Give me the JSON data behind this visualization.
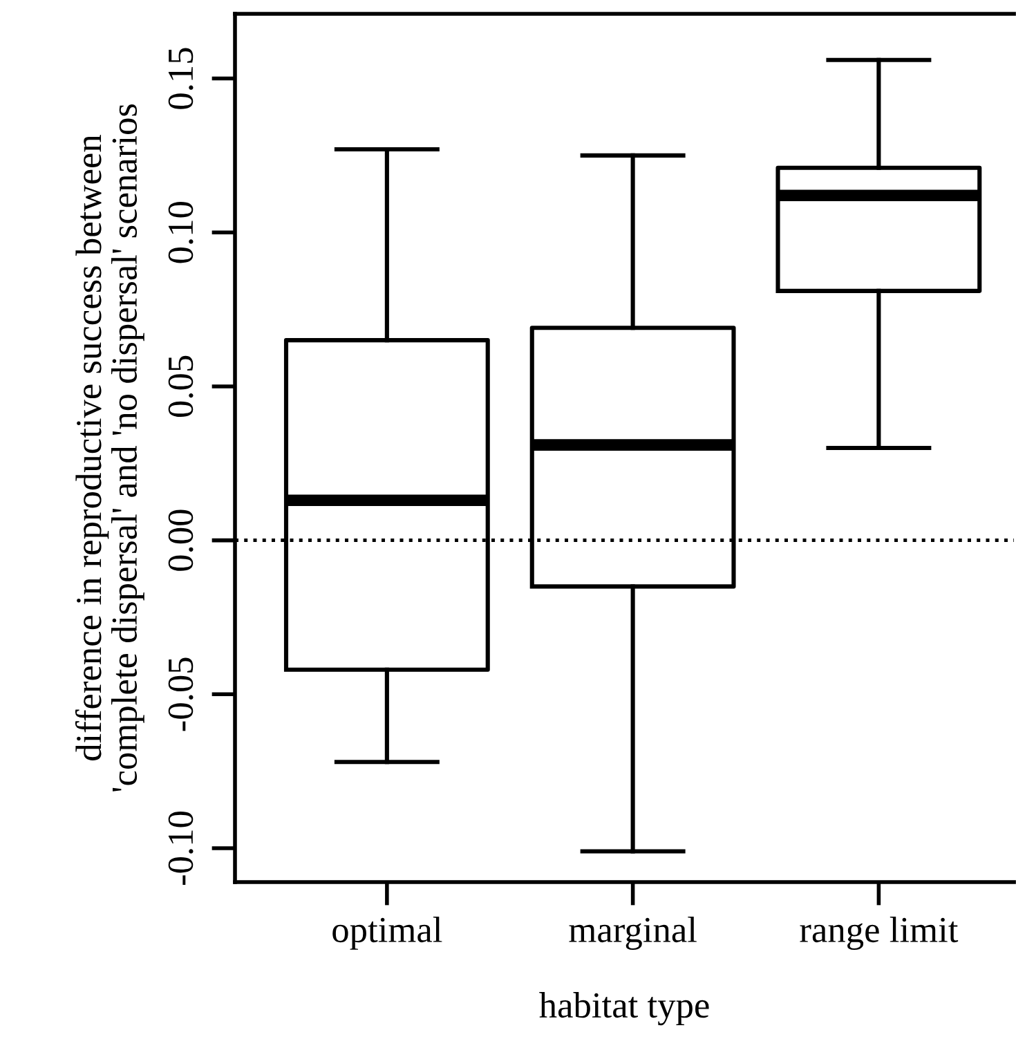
{
  "chart_data": {
    "type": "box",
    "xlabel": "habitat type",
    "ylabel": "difference in reproductive success between\n'complete dispersal' and 'no dispersal' scenarios",
    "categories": [
      "optimal",
      "marginal",
      "range limit"
    ],
    "boxes": [
      {
        "low": -0.072,
        "q1": -0.042,
        "median": 0.013,
        "q3": 0.065,
        "high": 0.127
      },
      {
        "low": -0.101,
        "q1": -0.015,
        "median": 0.031,
        "q3": 0.069,
        "high": 0.125
      },
      {
        "low": 0.03,
        "q1": 0.081,
        "median": 0.112,
        "q3": 0.121,
        "high": 0.156
      }
    ],
    "ylim": [
      -0.111,
      0.171
    ],
    "yticks": [
      {
        "value": -0.1,
        "label": "-0.10"
      },
      {
        "value": -0.05,
        "label": "-0.05"
      },
      {
        "value": 0,
        "label": "0.00"
      },
      {
        "value": 0.05,
        "label": "0.05"
      },
      {
        "value": 0.1,
        "label": "0.10"
      },
      {
        "value": 0.15,
        "label": "0.15"
      }
    ],
    "ref_lines": [
      {
        "axis": "y",
        "value": 0,
        "line_style": "dotted",
        "color": "#000000"
      }
    ],
    "grid": false
  }
}
